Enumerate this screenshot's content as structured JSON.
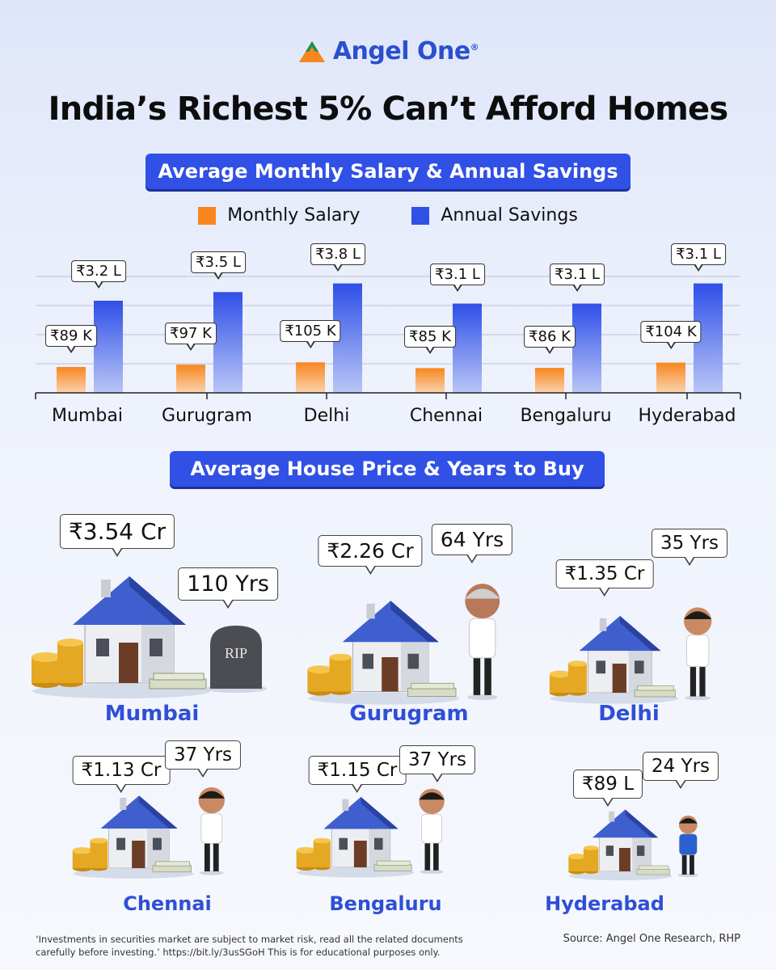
{
  "brand": {
    "name": "Angel One",
    "registered": "®"
  },
  "title": "India’s Richest 5% Can’t Afford Homes",
  "section1_title": "Average Monthly Salary & Annual Savings",
  "section2_title": "Average House Price & Years to Buy",
  "legend": [
    {
      "label": "Monthly Salary",
      "color": "#f7861f"
    },
    {
      "label": "Annual Savings",
      "color": "#3050e6"
    }
  ],
  "chart_data": {
    "type": "bar",
    "categories": [
      "Mumbai",
      "Gurugram",
      "Delhi",
      "Chennai",
      "Bengaluru",
      "Hyderabad"
    ],
    "series": [
      {
        "name": "Monthly Salary",
        "values": [
          89,
          97,
          105,
          85,
          86,
          104
        ],
        "unit": "₹ thousand",
        "labels": [
          "₹89 K",
          "₹97 K",
          "₹105 K",
          "₹85 K",
          "₹86 K",
          "₹104 K"
        ],
        "color": "#f7861f"
      },
      {
        "name": "Annual Savings",
        "values": [
          3.2,
          3.5,
          3.8,
          3.1,
          3.1,
          3.1
        ],
        "unit": "₹ lakh",
        "labels": [
          "₹3.2 L",
          "₹3.5 L",
          "₹3.8 L",
          "₹3.1 L",
          "₹3.1 L",
          "₹3.1 L"
        ],
        "color": "#3050e6"
      }
    ],
    "grid": true,
    "legend_position": "top"
  },
  "houses": [
    {
      "city": "Mumbai",
      "price": "₹3.54 Cr",
      "years": "110 Yrs",
      "figure": "tombstone",
      "tombstone_text": "RIP"
    },
    {
      "city": "Gurugram",
      "price": "₹2.26 Cr",
      "years": "64 Yrs",
      "figure": "old-man"
    },
    {
      "city": "Delhi",
      "price": "₹1.35 Cr",
      "years": "35 Yrs",
      "figure": "adult-man"
    },
    {
      "city": "Chennai",
      "price": "₹1.13 Cr",
      "years": "37 Yrs",
      "figure": "adult-man"
    },
    {
      "city": "Bengaluru",
      "price": "₹1.15 Cr",
      "years": "37 Yrs",
      "figure": "adult-man"
    },
    {
      "city": "Hyderabad",
      "price": "₹89 L",
      "years": "24 Yrs",
      "figure": "young-boy"
    }
  ],
  "disclaimer": "‘Investments in securities market are subject to market risk, read all the related documents carefully before investing.’ https://bit.ly/3usSGoH This is for educational purposes only.",
  "source": "Source: Angel One Research, RHP"
}
